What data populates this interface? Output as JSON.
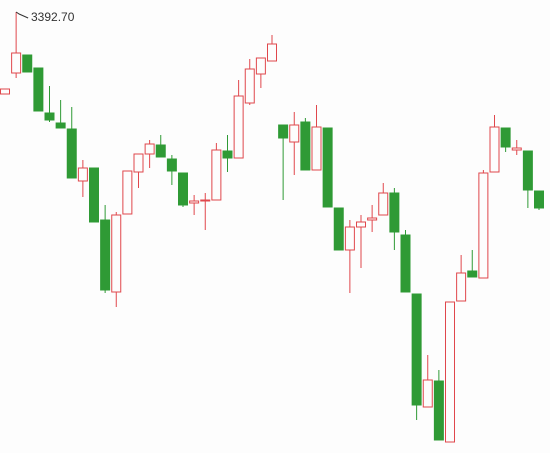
{
  "chart_data": {
    "type": "candlestick",
    "ylim": [
      2995.8,
      3403.5
    ],
    "up_color": "#e0474c",
    "down_color": "#2f9a35",
    "annotation": {
      "value": 3392.7,
      "label": "3392.70"
    },
    "open": [
      3318.9,
      3337.8,
      3354.0,
      3342.3,
      3301.8,
      3292.8,
      3287.4,
      3240.6,
      3252.3,
      3205.5,
      3140.7,
      3210.9,
      3248.7,
      3264.9,
      3273.0,
      3260.4,
      3247.8,
      3220.8,
      3222.6,
      3223.5,
      3267.6,
      3261.3,
      3310.8,
      3336.9,
      3348.6,
      3291.0,
      3275.7,
      3293.7,
      3250.5,
      3288.3,
      3216.3,
      3178.5,
      3199.2,
      3205.5,
      3210.0,
      3229.8,
      3192.0,
      3138.9,
      3037.2,
      3060.6,
      3005.7,
      3132.6,
      3159.6,
      3153.3,
      3248.7,
      3288.3,
      3268.5,
      3267.6,
      3231.6
    ],
    "high": [
      3323.4,
      3392.7,
      3354.0,
      3342.3,
      3326.1,
      3313.5,
      3307.2,
      3259.5,
      3252.3,
      3219.0,
      3212.7,
      3249.6,
      3264.9,
      3277.5,
      3282.0,
      3264.0,
      3247.8,
      3228.0,
      3229.8,
      3274.8,
      3282.0,
      3331.5,
      3350.4,
      3351.3,
      3372.0,
      3291.0,
      3302.7,
      3297.3,
      3309.0,
      3288.3,
      3216.3,
      3205.5,
      3210.0,
      3219.0,
      3238.8,
      3234.3,
      3196.5,
      3138.9,
      3084.0,
      3070.5,
      3131.7,
      3174.0,
      3178.5,
      3250.5,
      3300.0,
      3288.3,
      3277.5,
      3267.6,
      3231.6
    ],
    "low": [
      3318.9,
      3333.3,
      3338.7,
      3303.6,
      3293.7,
      3288.3,
      3243.3,
      3226.2,
      3203.7,
      3139.8,
      3127.2,
      3210.9,
      3234.3,
      3252.3,
      3262.2,
      3237.0,
      3217.2,
      3210.0,
      3196.5,
      3223.5,
      3248.7,
      3261.3,
      3309.0,
      3324.3,
      3348.6,
      3223.5,
      3246.0,
      3250.5,
      3250.5,
      3217.2,
      3178.5,
      3139.8,
      3162.3,
      3194.7,
      3210.0,
      3178.5,
      3140.7,
      3025.5,
      3037.2,
      3007.5,
      3005.7,
      3132.6,
      3154.2,
      3153.3,
      3248.7,
      3266.7,
      3264.0,
      3216.3,
      3214.5
    ],
    "close": [
      3323.4,
      3355.8,
      3338.7,
      3303.6,
      3295.5,
      3288.3,
      3243.3,
      3252.3,
      3203.7,
      3142.5,
      3210.0,
      3249.6,
      3264.9,
      3273.9,
      3262.2,
      3249.6,
      3219.0,
      3222.6,
      3223.5,
      3268.5,
      3261.3,
      3317.1,
      3341.4,
      3351.3,
      3363.9,
      3279.3,
      3291.0,
      3250.5,
      3289.2,
      3217.2,
      3178.5,
      3199.2,
      3203.7,
      3207.3,
      3229.8,
      3194.7,
      3140.7,
      3039.0,
      3061.5,
      3007.5,
      3131.7,
      3157.8,
      3154.2,
      3247.8,
      3289.2,
      3271.2,
      3270.3,
      3232.5,
      3216.3
    ]
  }
}
